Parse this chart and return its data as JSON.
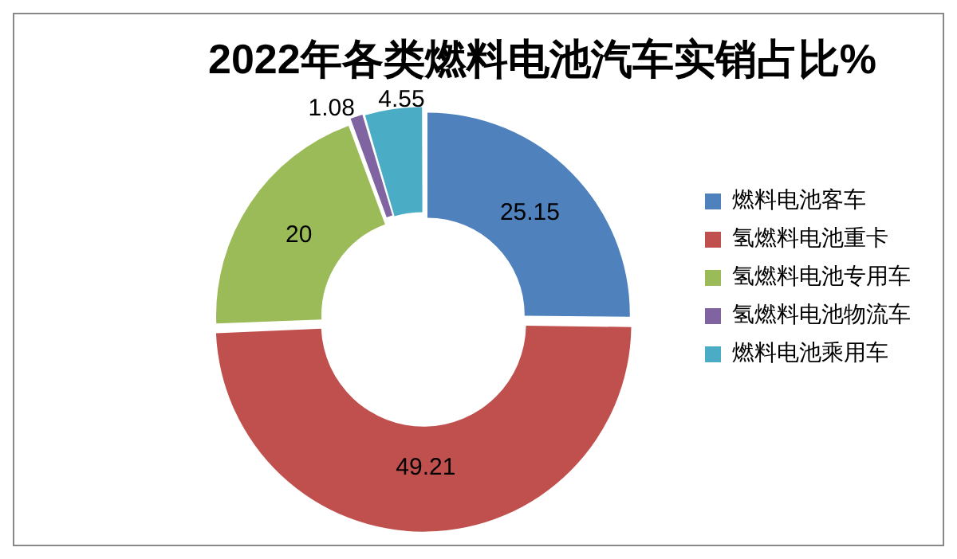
{
  "chart_data": {
    "type": "donut",
    "title": "2022年各类燃料电池汽车实销占比%",
    "categories": [
      "燃料电池客车",
      "氢燃料电池重卡",
      "氢燃料电池专用车",
      "氢燃料电池物流车",
      "燃料电池乘用车"
    ],
    "values": [
      25.15,
      49.21,
      20,
      1.08,
      4.55
    ],
    "colors": [
      "#4f81bd",
      "#c0504d",
      "#9bbb59",
      "#8064a2",
      "#4bacc6"
    ],
    "data_labels": true,
    "legend": "right"
  }
}
